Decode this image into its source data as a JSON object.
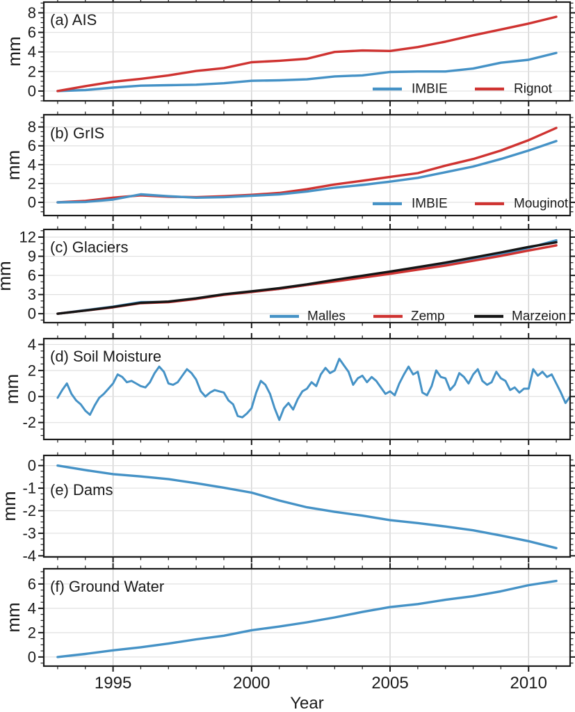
{
  "figure": {
    "xlabel": "Year",
    "x_major_ticks": [
      1995,
      2000,
      2005,
      2010
    ],
    "x_tick_labels": [
      "1995",
      "2000",
      "2005",
      "2010"
    ],
    "x_minor_step": 1,
    "x_range": [
      1992.5,
      2011.5
    ],
    "grid": true,
    "colors": {
      "blue": "#4592c6",
      "red": "#cf3331",
      "black": "#151515",
      "grid_x": "#c9c9c9",
      "grid_y": "#e0e0e0",
      "spine": "#1a1a1a",
      "text": "#1a1a1a",
      "background": "#ffffff"
    }
  },
  "chart_data": [
    {
      "id": "a",
      "type": "line",
      "title": "(a) AIS",
      "ylabel": "mm",
      "ylim": [
        -1.0,
        9.1
      ],
      "yticks": [
        0,
        2,
        4,
        6,
        8
      ],
      "y_minor_step": 0.5,
      "x_start": 1993,
      "x_step": 1,
      "legend_position": "lower right",
      "legend": [
        {
          "label": "IMBIE",
          "color": "blue"
        },
        {
          "label": "Rignot",
          "color": "red"
        }
      ],
      "series": [
        {
          "name": "IMBIE",
          "color": "blue",
          "values": [
            0,
            0.1,
            0.35,
            0.55,
            0.6,
            0.65,
            0.8,
            1.05,
            1.1,
            1.2,
            1.5,
            1.6,
            1.95,
            2.0,
            2.0,
            2.3,
            2.9,
            3.2,
            3.9
          ]
        },
        {
          "name": "Rignot",
          "color": "red",
          "values": [
            0,
            0.5,
            0.95,
            1.25,
            1.6,
            2.05,
            2.35,
            2.95,
            3.1,
            3.3,
            4.0,
            4.15,
            4.1,
            4.5,
            5.05,
            5.7,
            6.3,
            6.9,
            7.6
          ]
        }
      ]
    },
    {
      "id": "b",
      "type": "line",
      "title": "(b) GrIS",
      "ylabel": "mm",
      "ylim": [
        -1.4,
        9.3
      ],
      "yticks": [
        0,
        2,
        4,
        6,
        8
      ],
      "y_minor_step": 0.5,
      "x_start": 1993,
      "x_step": 1,
      "legend_position": "lower right",
      "legend": [
        {
          "label": "IMBIE",
          "color": "blue"
        },
        {
          "label": "Mouginot",
          "color": "red"
        }
      ],
      "series": [
        {
          "name": "Mouginot",
          "color": "red",
          "values": [
            0,
            0.15,
            0.5,
            0.75,
            0.6,
            0.55,
            0.65,
            0.8,
            1.0,
            1.4,
            1.9,
            2.3,
            2.7,
            3.1,
            3.9,
            4.6,
            5.5,
            6.6,
            7.9
          ]
        },
        {
          "name": "IMBIE",
          "color": "blue",
          "values": [
            0,
            0.05,
            0.3,
            0.85,
            0.65,
            0.5,
            0.55,
            0.7,
            0.85,
            1.15,
            1.55,
            1.85,
            2.2,
            2.6,
            3.2,
            3.8,
            4.6,
            5.5,
            6.5
          ]
        }
      ]
    },
    {
      "id": "c",
      "type": "line",
      "title": "(c) Glaciers",
      "ylabel": "mm",
      "ylim": [
        -1.4,
        13.2
      ],
      "yticks": [
        0,
        3,
        6,
        9,
        12
      ],
      "y_minor_step": 1,
      "x_start": 1993,
      "x_step": 1,
      "legend_position": "lower right",
      "legend": [
        {
          "label": "Malles",
          "color": "blue"
        },
        {
          "label": "Zemp",
          "color": "red"
        },
        {
          "label": "Marzeion",
          "color": "black"
        }
      ],
      "series": [
        {
          "name": "Malles",
          "color": "blue",
          "values": [
            0,
            0.55,
            1.1,
            1.8,
            1.85,
            2.35,
            3.0,
            3.45,
            3.9,
            4.5,
            5.1,
            5.7,
            6.35,
            7.0,
            7.75,
            8.55,
            9.35,
            10.3,
            11.5
          ]
        },
        {
          "name": "Zemp",
          "color": "red",
          "values": [
            0,
            0.5,
            1.0,
            1.65,
            1.8,
            2.3,
            2.95,
            3.4,
            3.9,
            4.5,
            5.05,
            5.65,
            6.25,
            6.9,
            7.55,
            8.3,
            9.05,
            9.9,
            10.7
          ]
        },
        {
          "name": "Marzeion",
          "color": "black",
          "values": [
            0,
            0.5,
            1.05,
            1.7,
            1.9,
            2.4,
            3.05,
            3.5,
            4.0,
            4.6,
            5.3,
            5.95,
            6.6,
            7.3,
            8.0,
            8.8,
            9.6,
            10.45,
            11.2
          ]
        }
      ]
    },
    {
      "id": "d",
      "type": "line",
      "title": "(d) Soil Moisture",
      "ylabel": "mm",
      "ylim": [
        -3.3,
        4.45
      ],
      "yticks": [
        -2,
        0,
        2,
        4
      ],
      "y_minor_step": 0.5,
      "x_start": 1993,
      "x_step": 0.16667,
      "legend": [],
      "series": [
        {
          "name": "Soil Moisture",
          "color": "blue",
          "values": [
            -0.1,
            0.5,
            1.0,
            0.2,
            -0.3,
            -0.6,
            -1.1,
            -1.4,
            -0.7,
            -0.1,
            0.2,
            0.6,
            1.0,
            1.7,
            1.5,
            1.1,
            1.2,
            1.0,
            0.8,
            0.7,
            1.1,
            1.8,
            2.3,
            1.9,
            1.0,
            0.9,
            1.1,
            1.6,
            2.1,
            1.8,
            1.3,
            0.4,
            0.0,
            0.3,
            0.5,
            0.4,
            0.3,
            -0.3,
            -0.6,
            -1.5,
            -1.6,
            -1.3,
            -0.9,
            0.3,
            1.2,
            0.9,
            0.2,
            -0.9,
            -1.8,
            -0.9,
            -0.5,
            -1.0,
            -0.2,
            0.4,
            0.6,
            1.1,
            0.8,
            1.7,
            2.2,
            1.8,
            2.0,
            2.9,
            2.4,
            1.9,
            0.9,
            1.4,
            1.6,
            1.1,
            1.5,
            1.2,
            0.7,
            0.2,
            0.4,
            0.1,
            1.0,
            1.7,
            2.3,
            1.7,
            1.9,
            0.3,
            0.1,
            0.8,
            2.0,
            1.5,
            1.4,
            0.5,
            0.9,
            1.8,
            1.5,
            1.0,
            1.7,
            2.1,
            1.2,
            0.9,
            1.1,
            1.9,
            1.4,
            1.2,
            0.5,
            0.7,
            0.3,
            0.6,
            0.6,
            2.1,
            1.6,
            1.9,
            1.5,
            1.7,
            1.0,
            0.3,
            -0.5,
            0.0
          ]
        }
      ]
    },
    {
      "id": "e",
      "type": "line",
      "title": "(e) Dams",
      "ylabel": "mm",
      "ylim": [
        -4.05,
        0.45
      ],
      "yticks": [
        0,
        -1,
        -2,
        -3,
        -4
      ],
      "y_minor_step": 0.25,
      "x_start": 1993,
      "x_step": 1,
      "legend": [],
      "series": [
        {
          "name": "Dams",
          "color": "blue",
          "values": [
            0,
            -0.2,
            -0.38,
            -0.48,
            -0.6,
            -0.78,
            -0.98,
            -1.2,
            -1.55,
            -1.85,
            -2.05,
            -2.22,
            -2.42,
            -2.55,
            -2.7,
            -2.87,
            -3.1,
            -3.35,
            -3.66
          ]
        }
      ]
    },
    {
      "id": "f",
      "type": "line",
      "title": "(f) Ground Water",
      "ylabel": "mm",
      "ylim": [
        -0.75,
        7.25
      ],
      "yticks": [
        0,
        2,
        4,
        6
      ],
      "y_minor_step": 0.5,
      "x_start": 1993,
      "x_step": 1,
      "legend": [],
      "series": [
        {
          "name": "Ground Water",
          "color": "blue",
          "values": [
            0,
            0.25,
            0.55,
            0.8,
            1.1,
            1.45,
            1.75,
            2.2,
            2.5,
            2.85,
            3.25,
            3.7,
            4.1,
            4.35,
            4.7,
            5.0,
            5.4,
            5.9,
            6.25
          ]
        }
      ]
    }
  ]
}
